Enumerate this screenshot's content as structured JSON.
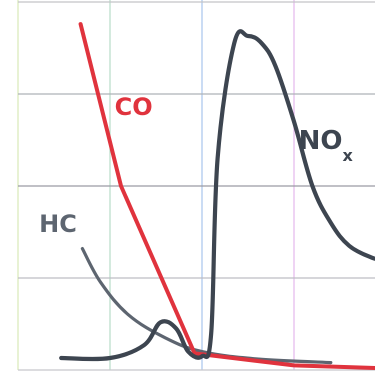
{
  "chart_data": {
    "type": "line",
    "title": "",
    "xlabel": "",
    "ylabel": "",
    "grid": true,
    "xlim": [
      0,
      4
    ],
    "ylim": [
      0,
      4
    ],
    "series": [
      {
        "name": "CO",
        "color": "#e0333d",
        "points": [
          [
            0.68,
            3.76
          ],
          [
            1.12,
            2.0
          ],
          [
            1.92,
            0.18
          ],
          [
            3.0,
            0.05
          ],
          [
            3.95,
            0.02
          ]
        ]
      },
      {
        "name": "HC",
        "color": "#5d6570",
        "points": [
          [
            0.7,
            1.32
          ],
          [
            0.9,
            0.95
          ],
          [
            1.2,
            0.6
          ],
          [
            1.6,
            0.35
          ],
          [
            2.0,
            0.2
          ],
          [
            2.6,
            0.12
          ],
          [
            3.4,
            0.08
          ]
        ]
      },
      {
        "name": "NO",
        "subscript": "x",
        "color": "#3d4550",
        "points": [
          [
            0.47,
            0.13
          ],
          [
            1.0,
            0.13
          ],
          [
            1.37,
            0.27
          ],
          [
            1.55,
            0.52
          ],
          [
            1.72,
            0.45
          ],
          [
            1.85,
            0.2
          ],
          [
            2.0,
            0.15
          ],
          [
            2.1,
            0.4
          ],
          [
            2.17,
            2.3
          ],
          [
            2.35,
            3.55
          ],
          [
            2.5,
            3.63
          ],
          [
            2.65,
            3.55
          ],
          [
            2.8,
            3.3
          ],
          [
            3.0,
            2.7
          ],
          [
            3.2,
            2.0
          ],
          [
            3.4,
            1.6
          ],
          [
            3.6,
            1.35
          ],
          [
            3.85,
            1.22
          ],
          [
            3.96,
            1.2
          ]
        ]
      }
    ]
  }
}
